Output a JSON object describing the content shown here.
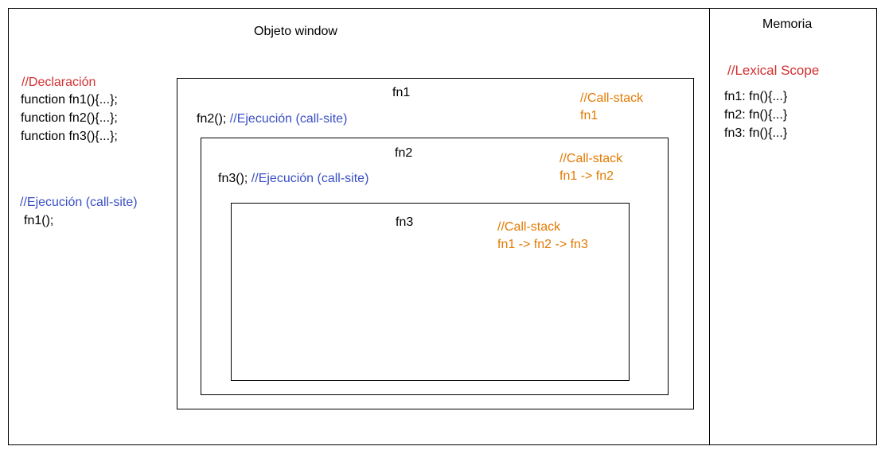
{
  "colors": {
    "red": "#d32f2f",
    "blue": "#3a4fc4",
    "orange": "#e37a00",
    "stroke": "#000000"
  },
  "window": {
    "title": "Objeto window"
  },
  "memory": {
    "title": "Memoria",
    "scope_label": "//Lexical Scope",
    "entries": [
      "fn1: fn(){...}",
      "fn2: fn(){...}",
      "fn3: fn(){...}"
    ]
  },
  "declaration": {
    "comment": "//Declaración",
    "lines": [
      "function fn1(){...};",
      "function fn2(){...};",
      "function fn3(){...};"
    ]
  },
  "execution": {
    "comment": "//Ejecución (call-site)",
    "code": "fn1();"
  },
  "fn1": {
    "title": "fn1",
    "call": "fn2();",
    "call_comment": "//Ejecución (call-site)",
    "stack_label": "//Call-stack",
    "stack": "fn1"
  },
  "fn2": {
    "title": "fn2",
    "call": "fn3();",
    "call_comment": "//Ejecución (call-site)",
    "stack_label": "//Call-stack",
    "stack": "fn1 -> fn2"
  },
  "fn3": {
    "title": "fn3",
    "stack_label": "//Call-stack",
    "stack": "fn1 -> fn2 -> fn3"
  }
}
